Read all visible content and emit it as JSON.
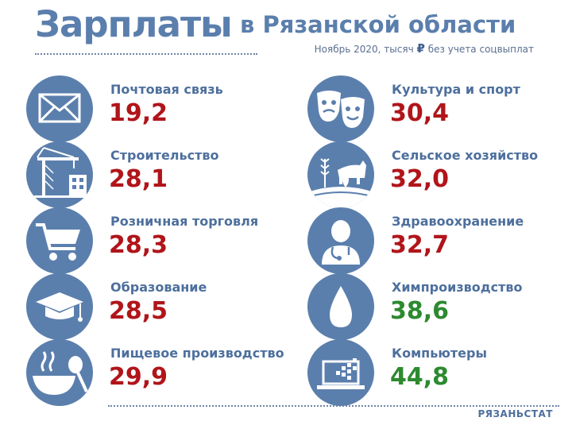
{
  "header": {
    "title_main": "Зарплаты",
    "title_sub": "в Рязанской области",
    "subtitle_before": "Ноябрь 2020, тысяч",
    "currency_symbol": "₽",
    "subtitle_after": "без учета соцвыплат"
  },
  "colors": {
    "accent": "#5b7fad",
    "value_red": "#b0151a",
    "value_green": "#2d8a2f"
  },
  "items_left": [
    {
      "label": "Почтовая связь",
      "value": "19,2",
      "icon": "envelope-icon"
    },
    {
      "label": "Строительство",
      "value": "28,1",
      "icon": "construction-crane-icon"
    },
    {
      "label": "Розничная торговля",
      "value": "28,3",
      "icon": "shopping-cart-icon"
    },
    {
      "label": "Образование",
      "value": "28,5",
      "icon": "graduation-cap-icon"
    },
    {
      "label": "Пищевое производство",
      "value": "29,9",
      "icon": "food-bowl-icon"
    }
  ],
  "items_right": [
    {
      "label": "Культура и спорт",
      "value": "30,4",
      "icon": "theater-masks-icon"
    },
    {
      "label": "Сельское хозяйство",
      "value": "32,0",
      "icon": "agriculture-icon"
    },
    {
      "label": "Здравоохранение",
      "value": "32,7",
      "icon": "doctor-icon"
    },
    {
      "label": "Химпроизводство",
      "value": "38,6",
      "icon": "drop-icon"
    },
    {
      "label": "Компьютеры",
      "value": "44,8",
      "icon": "laptop-icon"
    }
  ],
  "footer": {
    "source": "РЯЗАНЬСТАТ"
  }
}
